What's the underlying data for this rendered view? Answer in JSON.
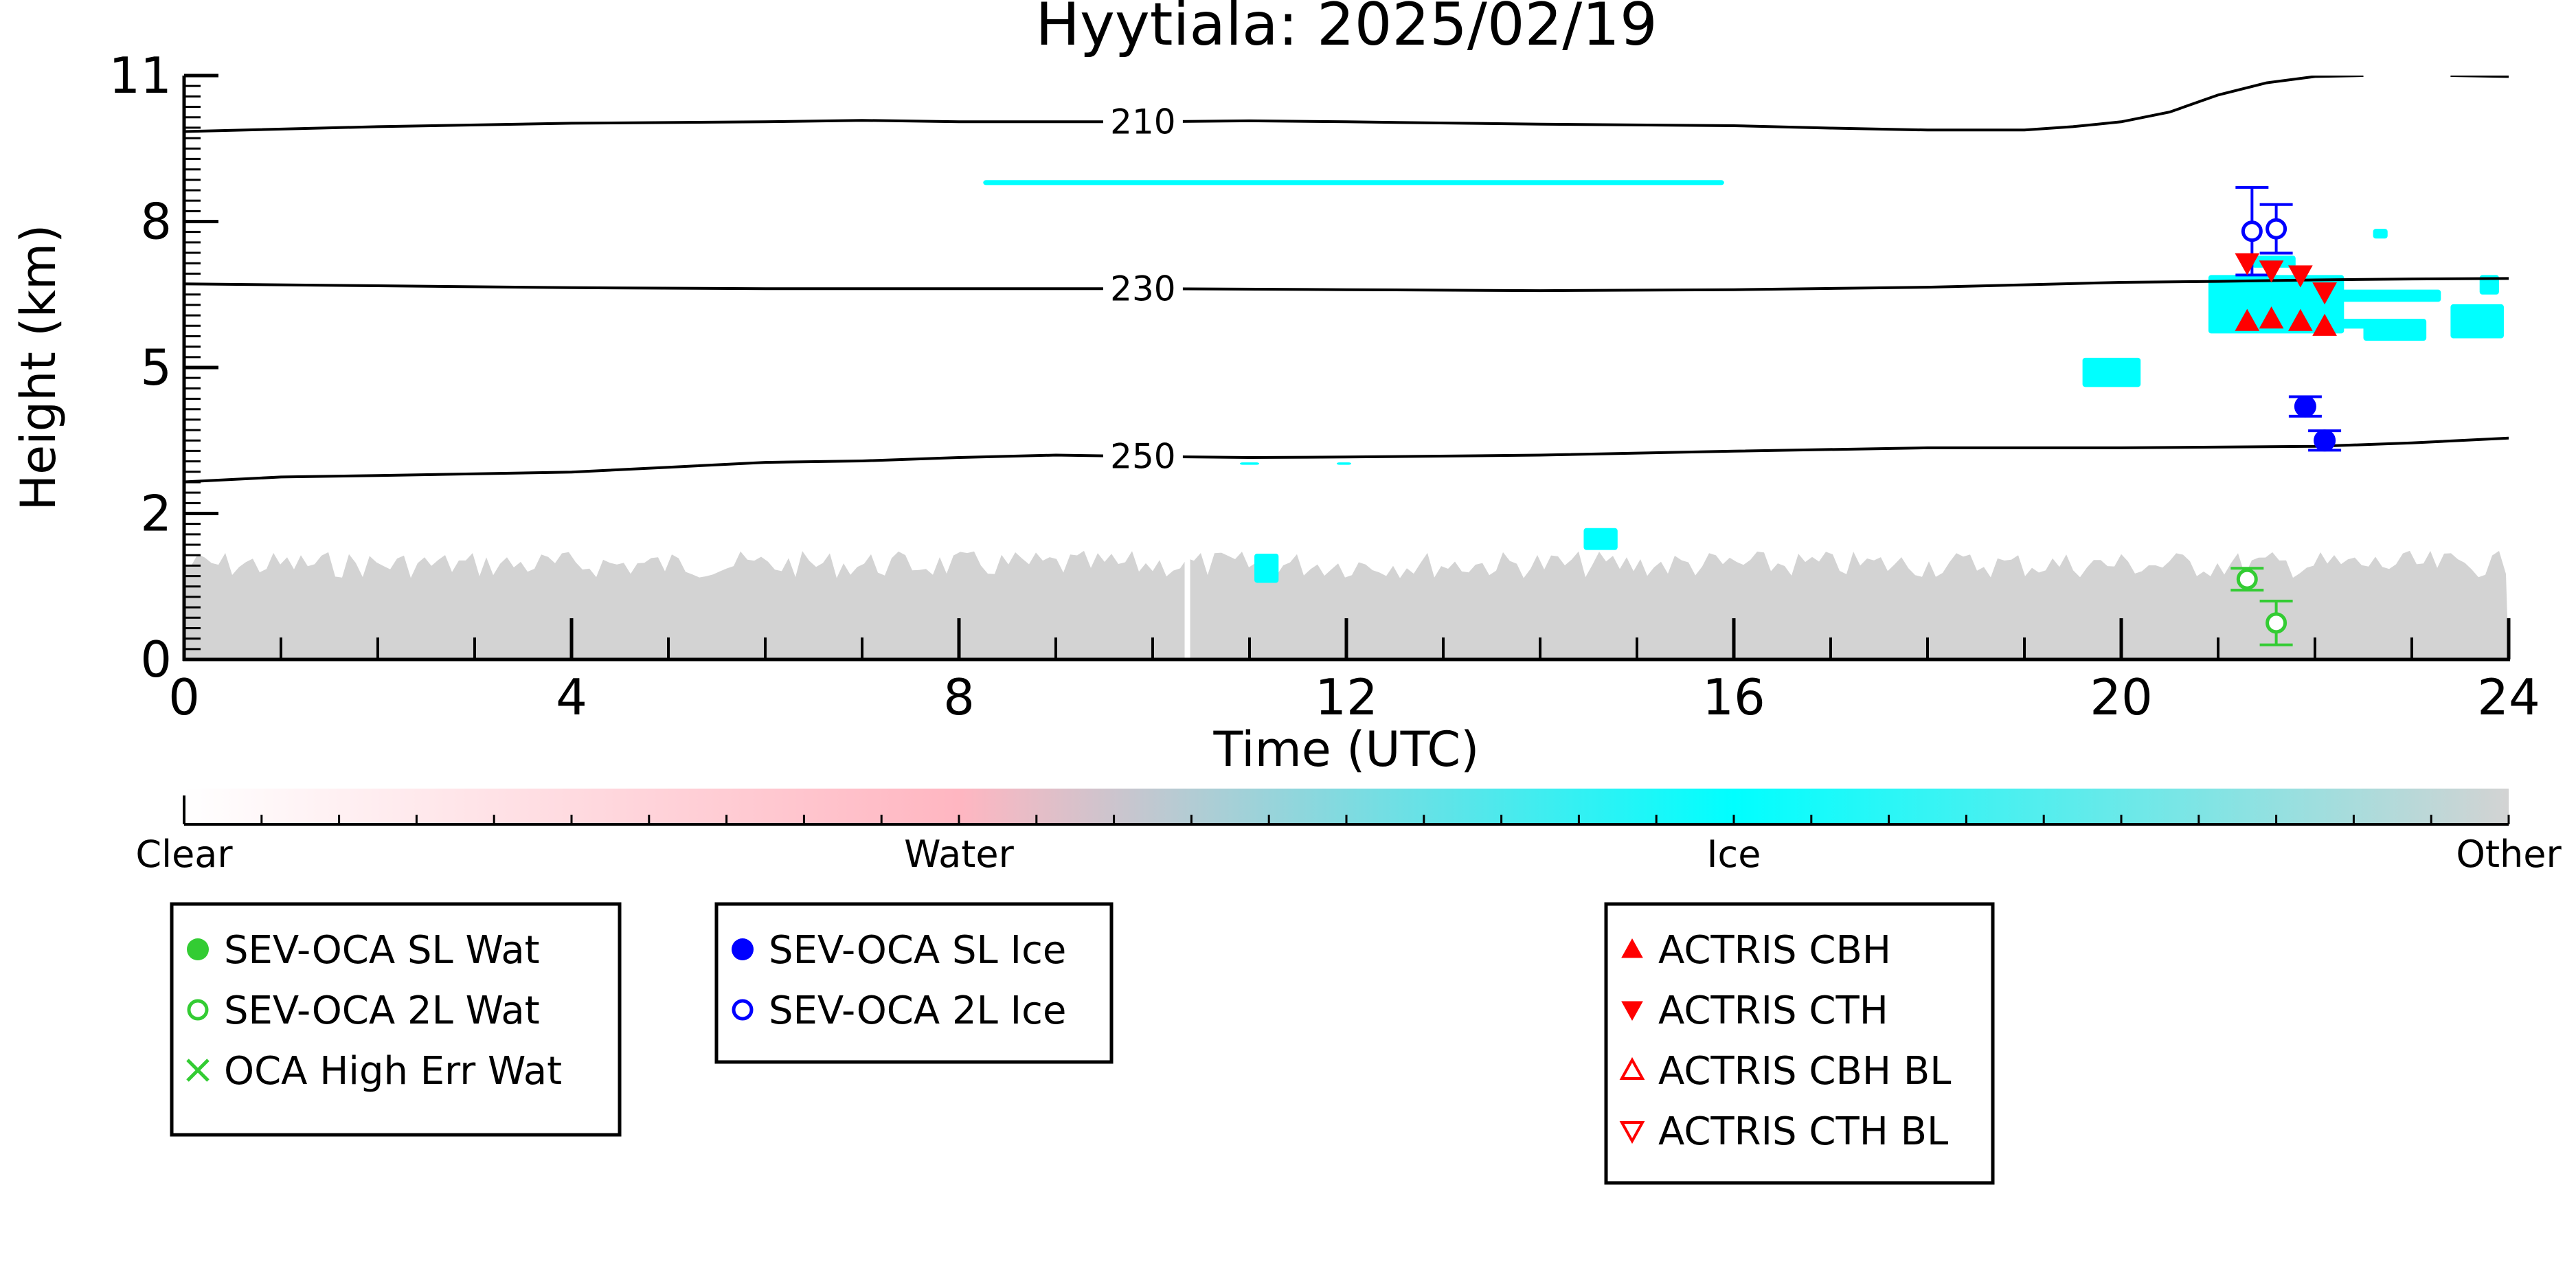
{
  "chart_data": {
    "type": "scatter",
    "title": "Hyytiala: 2025/02/19",
    "xlabel": "Time (UTC)",
    "ylabel": "Height (km)",
    "xlim": [
      0,
      24
    ],
    "ylim": [
      0,
      11
    ],
    "x_ticks": [
      0,
      4,
      8,
      12,
      16,
      20,
      24
    ],
    "y_ticks": [
      0,
      2,
      5,
      8,
      11
    ],
    "y_tick_labels": [
      "0",
      "2",
      "5",
      "8",
      "11"
    ],
    "y_scale": "nonlinear",
    "grid": false,
    "contours": [
      {
        "label": "210",
        "label_x": 9.9,
        "points": [
          [
            0,
            9.85
          ],
          [
            2,
            9.95
          ],
          [
            4,
            10.02
          ],
          [
            6,
            10.05
          ],
          [
            7,
            10.08
          ],
          [
            8,
            10.05
          ],
          [
            10,
            10.05
          ],
          [
            11,
            10.07
          ],
          [
            12,
            10.05
          ],
          [
            14,
            10.0
          ],
          [
            16,
            9.97
          ],
          [
            17,
            9.92
          ],
          [
            18,
            9.88
          ],
          [
            19,
            9.88
          ],
          [
            19.5,
            9.95
          ],
          [
            20,
            10.05
          ],
          [
            20.5,
            10.25
          ],
          [
            21,
            10.6
          ],
          [
            21.5,
            10.85
          ],
          [
            22,
            10.98
          ],
          [
            22.5,
            11.0
          ]
        ]
      },
      {
        "label": "210",
        "label_x": null,
        "points": [
          [
            23.4,
            11.0
          ],
          [
            24,
            10.98
          ]
        ]
      },
      {
        "label": "230",
        "label_x": 9.9,
        "points": [
          [
            0,
            6.72
          ],
          [
            2,
            6.68
          ],
          [
            4,
            6.64
          ],
          [
            6,
            6.62
          ],
          [
            8,
            6.62
          ],
          [
            10,
            6.62
          ],
          [
            12,
            6.6
          ],
          [
            14,
            6.58
          ],
          [
            16,
            6.6
          ],
          [
            18,
            6.65
          ],
          [
            19,
            6.7
          ],
          [
            20,
            6.75
          ],
          [
            21,
            6.77
          ],
          [
            22,
            6.8
          ],
          [
            23,
            6.82
          ],
          [
            24,
            6.83
          ]
        ]
      },
      {
        "label": "250",
        "label_x": 9.9,
        "points": [
          [
            0,
            2.65
          ],
          [
            1,
            2.75
          ],
          [
            2,
            2.78
          ],
          [
            4,
            2.85
          ],
          [
            5,
            2.95
          ],
          [
            6,
            3.05
          ],
          [
            7,
            3.08
          ],
          [
            8,
            3.15
          ],
          [
            9,
            3.2
          ],
          [
            10,
            3.17
          ],
          [
            11,
            3.15
          ],
          [
            12,
            3.16
          ],
          [
            14,
            3.2
          ],
          [
            16,
            3.28
          ],
          [
            18,
            3.35
          ],
          [
            20,
            3.35
          ],
          [
            22,
            3.38
          ],
          [
            23,
            3.45
          ],
          [
            24,
            3.55
          ]
        ]
      }
    ],
    "observations": {
      "sev_oca_sl_wat": [],
      "sev_oca_2l_wat": [
        {
          "x": 21.3,
          "y": 1.1,
          "err": 0.15
        },
        {
          "x": 21.6,
          "y": 0.5,
          "err": 0.3
        }
      ],
      "oca_high_err_wat": [],
      "sev_oca_sl_ice": [
        {
          "x": 21.9,
          "y": 4.2,
          "err": 0.2
        },
        {
          "x": 22.1,
          "y": 3.5,
          "err": 0.2
        }
      ],
      "sev_oca_2l_ice": [
        {
          "x": 21.35,
          "y": 7.8,
          "err": 0.9
        },
        {
          "x": 21.6,
          "y": 7.85,
          "err": 0.5
        }
      ],
      "actris_cbh": [
        {
          "x": 21.3,
          "y": 5.95
        },
        {
          "x": 21.55,
          "y": 6.0
        },
        {
          "x": 21.85,
          "y": 5.95
        },
        {
          "x": 22.1,
          "y": 5.85
        }
      ],
      "actris_cth": [
        {
          "x": 21.3,
          "y": 7.15
        },
        {
          "x": 21.55,
          "y": 7.0
        },
        {
          "x": 21.85,
          "y": 6.9
        },
        {
          "x": 22.1,
          "y": 6.55
        }
      ],
      "actris_cbh_bl": [],
      "actris_cth_bl": []
    },
    "cloud_regions": [
      {
        "class": "Ice",
        "x": [
          8.25,
          15.9
        ],
        "y": [
          8.75,
          8.85
        ]
      },
      {
        "class": "Ice",
        "x": [
          21.35,
          21.8
        ],
        "y": [
          7.05,
          7.3
        ]
      },
      {
        "class": "Ice",
        "x": [
          22.1,
          23.3
        ],
        "y": [
          6.35,
          6.6
        ]
      },
      {
        "class": "Ice",
        "x": [
          20.9,
          22.3
        ],
        "y": [
          5.7,
          6.9
        ]
      },
      {
        "class": "Ice",
        "x": [
          22.0,
          22.6
        ],
        "y": [
          5.8,
          6.0
        ]
      },
      {
        "class": "Ice",
        "x": [
          22.5,
          23.15
        ],
        "y": [
          5.55,
          6.0
        ]
      },
      {
        "class": "Ice",
        "x": [
          23.4,
          23.95
        ],
        "y": [
          5.6,
          6.3
        ]
      },
      {
        "class": "Ice",
        "x": [
          23.7,
          23.9
        ],
        "y": [
          6.5,
          6.9
        ]
      },
      {
        "class": "Ice",
        "x": [
          22.6,
          22.75
        ],
        "y": [
          7.65,
          7.85
        ]
      },
      {
        "class": "Ice",
        "x": [
          19.6,
          20.2
        ],
        "y": [
          4.6,
          5.2
        ]
      },
      {
        "class": "Ice",
        "x": [
          14.45,
          14.8
        ],
        "y": [
          1.5,
          1.8
        ]
      },
      {
        "class": "Ice",
        "x": [
          11.05,
          11.3
        ],
        "y": [
          1.05,
          1.45
        ]
      },
      {
        "class": "Ice",
        "x": [
          9.6,
          9.75
        ],
        "y": [
          3.0,
          3.05
        ]
      },
      {
        "class": "Ice",
        "x": [
          10.9,
          11.1
        ],
        "y": [
          3.0,
          3.05
        ]
      },
      {
        "class": "Ice",
        "x": [
          11.9,
          12.05
        ],
        "y": [
          3.0,
          3.05
        ]
      },
      {
        "class": "Other",
        "x": [
          0,
          24
        ],
        "y": [
          0,
          1.3
        ]
      }
    ],
    "colorbar": {
      "labels": [
        "Clear",
        "Water",
        "Ice",
        "Other"
      ],
      "colors": [
        "#ffffff",
        "#ffb6c1",
        "#00ffff",
        "#d3d3d3"
      ]
    },
    "legend": [
      {
        "group": 1,
        "label": "SEV-OCA SL Wat",
        "marker": "filled-circle",
        "color": "#33cc33"
      },
      {
        "group": 1,
        "label": "SEV-OCA 2L Wat",
        "marker": "open-circle",
        "color": "#33cc33"
      },
      {
        "group": 1,
        "label": "OCA High Err Wat",
        "marker": "x",
        "color": "#33cc33"
      },
      {
        "group": 2,
        "label": "SEV-OCA SL Ice",
        "marker": "filled-circle",
        "color": "#0000ff"
      },
      {
        "group": 2,
        "label": "SEV-OCA 2L Ice",
        "marker": "open-circle",
        "color": "#0000ff"
      },
      {
        "group": 3,
        "label": "ACTRIS CBH",
        "marker": "filled-triangle-up",
        "color": "#ff0000"
      },
      {
        "group": 3,
        "label": "ACTRIS CTH",
        "marker": "filled-triangle-down",
        "color": "#ff0000"
      },
      {
        "group": 3,
        "label": "ACTRIS CBH BL",
        "marker": "open-triangle-up",
        "color": "#ff0000"
      },
      {
        "group": 3,
        "label": "ACTRIS CTH BL",
        "marker": "open-triangle-down",
        "color": "#ff0000"
      }
    ]
  }
}
